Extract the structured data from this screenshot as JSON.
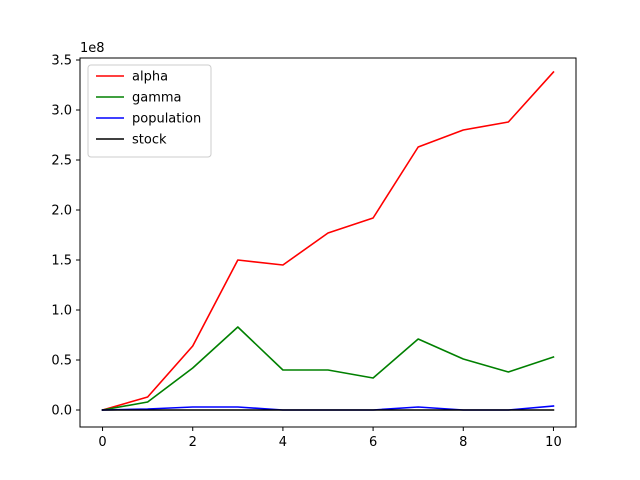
{
  "chart_data": {
    "type": "line",
    "title": "",
    "xlabel": "",
    "ylabel": "",
    "y_offset_label": "1e8",
    "x": [
      0,
      1,
      2,
      3,
      4,
      5,
      6,
      7,
      8,
      9,
      10
    ],
    "xlim": [
      -0.5,
      10.5
    ],
    "ylim": [
      -0.17,
      3.52
    ],
    "x_ticks": [
      0,
      2,
      4,
      6,
      8,
      10
    ],
    "x_tick_labels": [
      "0",
      "2",
      "4",
      "6",
      "8",
      "10"
    ],
    "y_ticks": [
      0.0,
      0.5,
      1.0,
      1.5,
      2.0,
      2.5,
      3.0,
      3.5
    ],
    "y_tick_labels": [
      "0.0",
      "0.5",
      "1.0",
      "1.5",
      "2.0",
      "2.5",
      "3.0",
      "3.5"
    ],
    "grid": false,
    "legend_position": "top-left",
    "series": [
      {
        "name": "alpha",
        "color": "#ff0000",
        "values": [
          0.0,
          0.13,
          0.64,
          1.5,
          1.45,
          1.77,
          1.92,
          2.63,
          2.8,
          2.88,
          3.38
        ]
      },
      {
        "name": "gamma",
        "color": "#008000",
        "values": [
          0.0,
          0.08,
          0.42,
          0.83,
          0.4,
          0.4,
          0.32,
          0.71,
          0.51,
          0.38,
          0.53
        ]
      },
      {
        "name": "population",
        "color": "#0000ff",
        "values": [
          0.0,
          0.01,
          0.03,
          0.03,
          0.0,
          0.0,
          0.0,
          0.03,
          0.0,
          0.0,
          0.04
        ]
      },
      {
        "name": "stock",
        "color": "#000000",
        "values": [
          0.0,
          0.0,
          0.0,
          0.0,
          0.0,
          0.0,
          0.0,
          0.0,
          0.0,
          0.0,
          0.0
        ]
      }
    ]
  }
}
